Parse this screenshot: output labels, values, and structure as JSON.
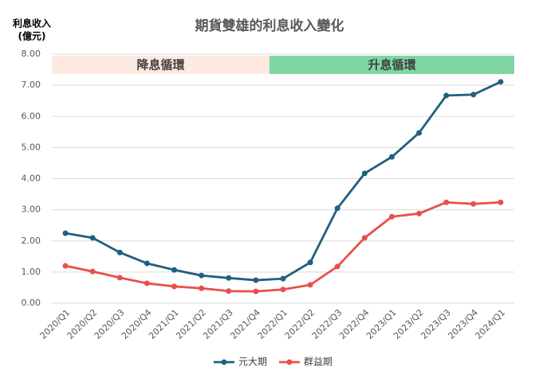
{
  "chart_data": {
    "type": "line",
    "title": "期貨雙雄的利息收入變化",
    "y_label": [
      "利息收入",
      "(億元)"
    ],
    "categories": [
      "2020/Q1",
      "2020/Q2",
      "2020/Q3",
      "2020/Q4",
      "2021/Q1",
      "2021/Q2",
      "2021/Q3",
      "2021/Q4",
      "2022/Q1",
      "2022/Q2",
      "2022/Q3",
      "2022/Q4",
      "2023/Q1",
      "2023/Q2",
      "2023/Q3",
      "2023/Q4",
      "2024/Q1"
    ],
    "series": [
      {
        "name": "元大期",
        "color": "#215f80",
        "values": [
          2.25,
          2.1,
          1.63,
          1.28,
          1.07,
          0.89,
          0.81,
          0.74,
          0.79,
          1.31,
          3.05,
          4.17,
          4.7,
          5.47,
          6.67,
          6.7,
          7.11
        ]
      },
      {
        "name": "群益期",
        "color": "#e8504a",
        "values": [
          1.2,
          1.02,
          0.82,
          0.64,
          0.54,
          0.48,
          0.39,
          0.38,
          0.44,
          0.59,
          1.18,
          2.1,
          2.78,
          2.88,
          3.24,
          3.19,
          3.24
        ]
      }
    ],
    "annotations": [
      {
        "label": "降息循環",
        "from": "2020/Q1",
        "to": "2021/Q4",
        "color": "#fde9df"
      },
      {
        "label": "升息循環",
        "from": "2022/Q1",
        "to": "2024/Q1",
        "color": "#7fd6a3"
      }
    ],
    "ylim": [
      0,
      8
    ],
    "yticks": [
      {
        "value": 0,
        "label": "0.00"
      },
      {
        "value": 1,
        "label": "1.00"
      },
      {
        "value": 2,
        "label": "2.00"
      },
      {
        "value": 3,
        "label": "3.00"
      },
      {
        "value": 4,
        "label": "4.00"
      },
      {
        "value": 5,
        "label": "5.00"
      },
      {
        "value": 6,
        "label": "6.00"
      },
      {
        "value": 7,
        "label": "7.00"
      },
      {
        "value": 8,
        "label": "8.00"
      }
    ],
    "grid": true,
    "legend": "bottom"
  }
}
